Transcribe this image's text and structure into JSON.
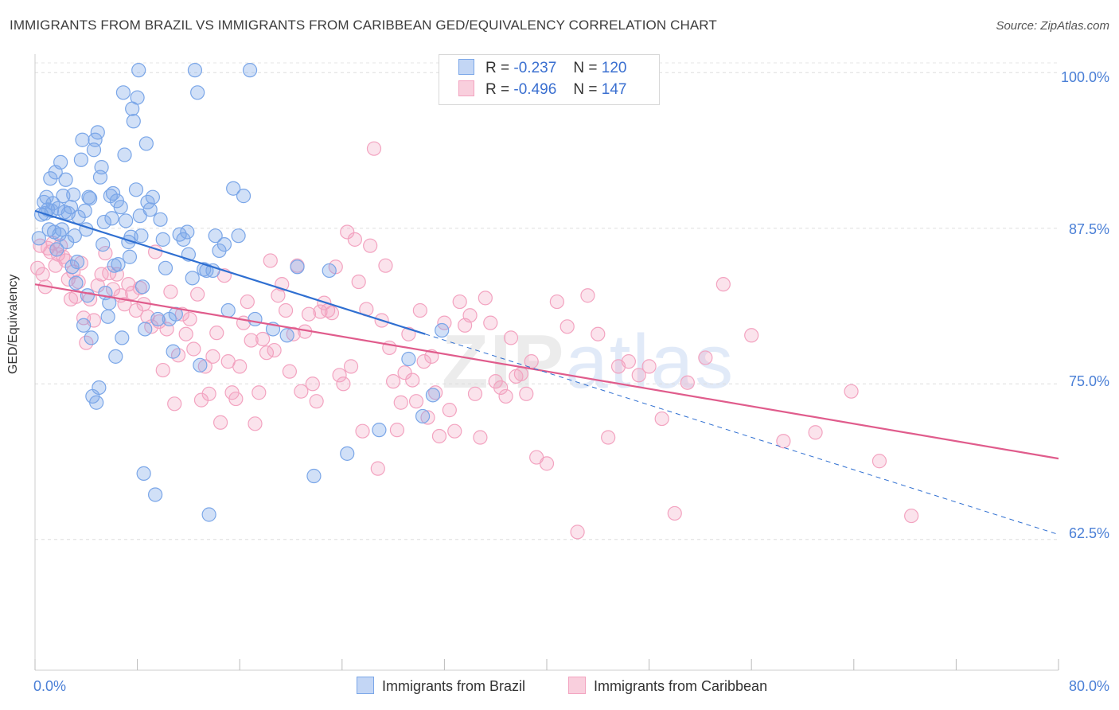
{
  "header": {
    "title": "IMMIGRANTS FROM BRAZIL VS IMMIGRANTS FROM CARIBBEAN GED/EQUIVALENCY CORRELATION CHART",
    "source": "Source: ZipAtlas.com"
  },
  "watermark": {
    "zip": "ZIP",
    "atlas": "atlas"
  },
  "legend": {
    "r_label": "R =",
    "n_label": "N =",
    "series": [
      {
        "r": "-0.237",
        "n": "120"
      },
      {
        "r": "-0.496",
        "n": "147"
      }
    ]
  },
  "chart_data": {
    "type": "scatter",
    "title": "IMMIGRANTS FROM BRAZIL VS IMMIGRANTS FROM CARIBBEAN GED/EQUIVALENCY CORRELATION CHART",
    "xlabel": "",
    "ylabel": "GED/Equivalency",
    "xlim": [
      0,
      80
    ],
    "ylim": [
      52,
      102
    ],
    "x_tick_labels": [
      "0.0%",
      "80.0%"
    ],
    "y_ticks": [
      62.5,
      75.0,
      87.5,
      100.0
    ],
    "y_tick_labels": [
      "62.5%",
      "75.0%",
      "87.5%",
      "100.0%"
    ],
    "grid": true,
    "legend_position": "top-center",
    "colors": {
      "brazil": "#7aa6e8",
      "brazil_line": "#2f6fd1",
      "caribbean": "#f3a3c0",
      "caribbean_line": "#e05c8c"
    },
    "series": [
      {
        "name": "Immigrants from Brazil",
        "r": -0.237,
        "n": 120,
        "trend": {
          "x": [
            0,
            30.5
          ],
          "y": [
            88.9,
            79.0
          ]
        },
        "trend_dashed": {
          "x": [
            30.5,
            80
          ],
          "y": [
            79.0,
            62.9
          ]
        },
        "points": [
          [
            0.3,
            86.7
          ],
          [
            0.5,
            88.6
          ],
          [
            0.7,
            89.6
          ],
          [
            0.8,
            88.7
          ],
          [
            0.9,
            90.0
          ],
          [
            1.0,
            89.0
          ],
          [
            1.1,
            87.4
          ],
          [
            1.2,
            91.5
          ],
          [
            1.3,
            88.9
          ],
          [
            1.4,
            89.5
          ],
          [
            1.5,
            87.2
          ],
          [
            1.6,
            92.0
          ],
          [
            1.7,
            85.8
          ],
          [
            1.8,
            89.1
          ],
          [
            1.9,
            87.0
          ],
          [
            2.0,
            92.8
          ],
          [
            2.1,
            87.4
          ],
          [
            2.2,
            90.1
          ],
          [
            2.3,
            88.8
          ],
          [
            2.4,
            91.4
          ],
          [
            2.5,
            86.4
          ],
          [
            2.6,
            88.7
          ],
          [
            2.8,
            89.2
          ],
          [
            2.9,
            84.4
          ],
          [
            3.0,
            90.2
          ],
          [
            3.1,
            86.9
          ],
          [
            3.2,
            83.1
          ],
          [
            3.3,
            84.8
          ],
          [
            3.4,
            88.4
          ],
          [
            3.6,
            93.0
          ],
          [
            3.7,
            94.6
          ],
          [
            3.8,
            79.7
          ],
          [
            3.9,
            88.9
          ],
          [
            4.0,
            87.4
          ],
          [
            4.1,
            82.1
          ],
          [
            4.2,
            90.0
          ],
          [
            4.3,
            89.9
          ],
          [
            4.4,
            78.7
          ],
          [
            4.5,
            74.0
          ],
          [
            4.6,
            93.8
          ],
          [
            4.7,
            94.6
          ],
          [
            4.8,
            73.5
          ],
          [
            4.9,
            95.2
          ],
          [
            5.0,
            74.7
          ],
          [
            5.1,
            91.6
          ],
          [
            5.2,
            92.4
          ],
          [
            5.3,
            86.2
          ],
          [
            5.4,
            88.0
          ],
          [
            5.5,
            82.3
          ],
          [
            5.7,
            80.4
          ],
          [
            5.8,
            81.5
          ],
          [
            5.9,
            90.1
          ],
          [
            6.0,
            88.3
          ],
          [
            6.1,
            90.3
          ],
          [
            6.2,
            84.5
          ],
          [
            6.3,
            77.2
          ],
          [
            6.4,
            89.7
          ],
          [
            6.5,
            84.6
          ],
          [
            6.7,
            89.2
          ],
          [
            6.8,
            78.7
          ],
          [
            6.9,
            98.4
          ],
          [
            7.0,
            93.4
          ],
          [
            7.1,
            88.1
          ],
          [
            7.3,
            86.4
          ],
          [
            7.4,
            85.2
          ],
          [
            7.5,
            86.8
          ],
          [
            7.6,
            97.1
          ],
          [
            7.7,
            96.1
          ],
          [
            7.9,
            90.6
          ],
          [
            8.0,
            98.0
          ],
          [
            8.1,
            100.2
          ],
          [
            8.2,
            88.5
          ],
          [
            8.3,
            86.9
          ],
          [
            8.4,
            82.8
          ],
          [
            8.5,
            67.8
          ],
          [
            8.6,
            79.4
          ],
          [
            8.7,
            94.3
          ],
          [
            8.8,
            89.6
          ],
          [
            9.0,
            89.0
          ],
          [
            9.2,
            90.0
          ],
          [
            9.4,
            66.1
          ],
          [
            9.6,
            80.2
          ],
          [
            9.8,
            88.2
          ],
          [
            10.0,
            86.6
          ],
          [
            10.2,
            84.3
          ],
          [
            10.5,
            80.2
          ],
          [
            10.8,
            77.6
          ],
          [
            11.0,
            80.6
          ],
          [
            11.3,
            87.0
          ],
          [
            11.6,
            86.6
          ],
          [
            11.9,
            87.2
          ],
          [
            12.0,
            85.4
          ],
          [
            12.3,
            83.5
          ],
          [
            12.5,
            100.2
          ],
          [
            12.7,
            98.4
          ],
          [
            12.9,
            76.5
          ],
          [
            13.2,
            84.2
          ],
          [
            13.4,
            84.1
          ],
          [
            13.6,
            64.5
          ],
          [
            13.9,
            84.1
          ],
          [
            14.1,
            86.9
          ],
          [
            14.4,
            85.7
          ],
          [
            14.8,
            86.2
          ],
          [
            15.1,
            80.9
          ],
          [
            15.5,
            90.7
          ],
          [
            15.9,
            86.9
          ],
          [
            16.3,
            90.1
          ],
          [
            16.8,
            100.2
          ],
          [
            17.2,
            80.2
          ],
          [
            18.6,
            79.4
          ],
          [
            19.7,
            78.9
          ],
          [
            20.5,
            84.4
          ],
          [
            21.8,
            67.6
          ],
          [
            23.0,
            84.1
          ],
          [
            24.4,
            69.4
          ],
          [
            26.9,
            71.3
          ],
          [
            29.2,
            77.0
          ],
          [
            30.3,
            72.4
          ],
          [
            31.1,
            74.1
          ],
          [
            31.8,
            79.3
          ]
        ]
      },
      {
        "name": "Immigrants from Caribbean",
        "r": -0.496,
        "n": 147,
        "trend": {
          "x": [
            0,
            80
          ],
          "y": [
            83.0,
            69.0
          ]
        },
        "points": [
          [
            0.2,
            84.3
          ],
          [
            0.4,
            86.1
          ],
          [
            0.6,
            83.8
          ],
          [
            0.8,
            82.8
          ],
          [
            1.0,
            85.9
          ],
          [
            1.2,
            85.6
          ],
          [
            1.4,
            86.3
          ],
          [
            1.6,
            84.5
          ],
          [
            1.8,
            85.4
          ],
          [
            2.0,
            86.1
          ],
          [
            2.2,
            85.2
          ],
          [
            2.4,
            84.9
          ],
          [
            2.6,
            83.4
          ],
          [
            2.8,
            81.8
          ],
          [
            3.0,
            84.0
          ],
          [
            3.2,
            82.0
          ],
          [
            3.4,
            83.2
          ],
          [
            3.6,
            84.7
          ],
          [
            3.8,
            80.3
          ],
          [
            4.0,
            78.3
          ],
          [
            4.3,
            81.8
          ],
          [
            4.6,
            80.1
          ],
          [
            4.9,
            82.9
          ],
          [
            5.2,
            83.8
          ],
          [
            5.5,
            85.5
          ],
          [
            5.8,
            83.9
          ],
          [
            6.1,
            82.6
          ],
          [
            6.4,
            83.8
          ],
          [
            6.7,
            82.1
          ],
          [
            7.0,
            81.4
          ],
          [
            7.3,
            83.0
          ],
          [
            7.6,
            82.3
          ],
          [
            7.9,
            80.9
          ],
          [
            8.2,
            82.7
          ],
          [
            8.5,
            81.4
          ],
          [
            8.8,
            80.4
          ],
          [
            9.1,
            79.6
          ],
          [
            9.4,
            85.6
          ],
          [
            9.7,
            80.0
          ],
          [
            10.0,
            76.1
          ],
          [
            10.3,
            79.4
          ],
          [
            10.6,
            82.4
          ],
          [
            10.9,
            73.4
          ],
          [
            11.2,
            77.3
          ],
          [
            11.5,
            80.6
          ],
          [
            11.8,
            79.0
          ],
          [
            12.1,
            80.2
          ],
          [
            12.4,
            77.8
          ],
          [
            12.7,
            82.2
          ],
          [
            13.0,
            73.7
          ],
          [
            13.3,
            76.4
          ],
          [
            13.6,
            74.2
          ],
          [
            13.9,
            77.2
          ],
          [
            14.2,
            79.1
          ],
          [
            14.5,
            71.9
          ],
          [
            14.8,
            83.7
          ],
          [
            15.1,
            76.8
          ],
          [
            15.4,
            74.3
          ],
          [
            15.7,
            73.8
          ],
          [
            16.0,
            76.4
          ],
          [
            16.3,
            79.9
          ],
          [
            16.6,
            81.6
          ],
          [
            16.9,
            78.5
          ],
          [
            17.2,
            71.8
          ],
          [
            17.5,
            74.3
          ],
          [
            17.8,
            78.6
          ],
          [
            18.1,
            77.5
          ],
          [
            18.4,
            84.9
          ],
          [
            18.7,
            77.7
          ],
          [
            19.0,
            82.1
          ],
          [
            19.3,
            83.0
          ],
          [
            19.6,
            80.9
          ],
          [
            19.9,
            76.0
          ],
          [
            20.2,
            79.0
          ],
          [
            20.5,
            84.5
          ],
          [
            20.8,
            74.4
          ],
          [
            21.1,
            79.2
          ],
          [
            21.4,
            80.6
          ],
          [
            21.7,
            75.0
          ],
          [
            22.0,
            73.6
          ],
          [
            22.3,
            80.8
          ],
          [
            22.6,
            81.5
          ],
          [
            22.9,
            80.9
          ],
          [
            23.2,
            80.7
          ],
          [
            23.5,
            84.4
          ],
          [
            23.8,
            75.7
          ],
          [
            24.1,
            75.0
          ],
          [
            24.4,
            87.2
          ],
          [
            24.7,
            76.4
          ],
          [
            25.0,
            86.6
          ],
          [
            25.3,
            83.2
          ],
          [
            25.6,
            71.2
          ],
          [
            25.9,
            81.0
          ],
          [
            26.2,
            86.1
          ],
          [
            26.5,
            93.9
          ],
          [
            26.8,
            68.2
          ],
          [
            27.1,
            80.1
          ],
          [
            27.4,
            84.5
          ],
          [
            27.7,
            77.9
          ],
          [
            28.0,
            75.2
          ],
          [
            28.3,
            71.3
          ],
          [
            28.6,
            73.5
          ],
          [
            28.9,
            75.9
          ],
          [
            29.2,
            79.0
          ],
          [
            29.5,
            75.3
          ],
          [
            29.8,
            73.6
          ],
          [
            30.1,
            80.9
          ],
          [
            30.4,
            76.8
          ],
          [
            30.7,
            72.3
          ],
          [
            31.0,
            77.2
          ],
          [
            31.3,
            74.3
          ],
          [
            31.6,
            70.8
          ],
          [
            32.0,
            79.9
          ],
          [
            32.4,
            72.9
          ],
          [
            32.8,
            71.2
          ],
          [
            33.2,
            81.6
          ],
          [
            33.6,
            79.7
          ],
          [
            34.0,
            80.5
          ],
          [
            34.4,
            74.2
          ],
          [
            34.8,
            70.7
          ],
          [
            35.2,
            81.9
          ],
          [
            35.6,
            79.9
          ],
          [
            36.0,
            75.2
          ],
          [
            36.4,
            74.7
          ],
          [
            36.8,
            74.0
          ],
          [
            37.2,
            78.7
          ],
          [
            37.6,
            75.6
          ],
          [
            38.0,
            75.8
          ],
          [
            38.4,
            74.2
          ],
          [
            38.8,
            76.8
          ],
          [
            39.2,
            69.1
          ],
          [
            40.0,
            68.6
          ],
          [
            40.8,
            81.6
          ],
          [
            41.6,
            79.6
          ],
          [
            42.4,
            63.1
          ],
          [
            43.2,
            82.1
          ],
          [
            44.0,
            79.0
          ],
          [
            44.8,
            70.7
          ],
          [
            45.6,
            76.4
          ],
          [
            46.4,
            76.8
          ],
          [
            47.2,
            75.7
          ],
          [
            48.0,
            76.4
          ],
          [
            49.0,
            72.2
          ],
          [
            50.0,
            64.6
          ],
          [
            51.0,
            75.1
          ],
          [
            52.4,
            77.1
          ],
          [
            53.8,
            83.0
          ],
          [
            56.0,
            78.9
          ],
          [
            58.5,
            70.4
          ],
          [
            61.0,
            71.1
          ],
          [
            63.8,
            74.4
          ],
          [
            66.0,
            68.8
          ],
          [
            68.5,
            64.4
          ]
        ]
      }
    ]
  },
  "bottom_legend": [
    {
      "label": "Immigrants from Brazil"
    },
    {
      "label": "Immigrants from Caribbean"
    }
  ]
}
